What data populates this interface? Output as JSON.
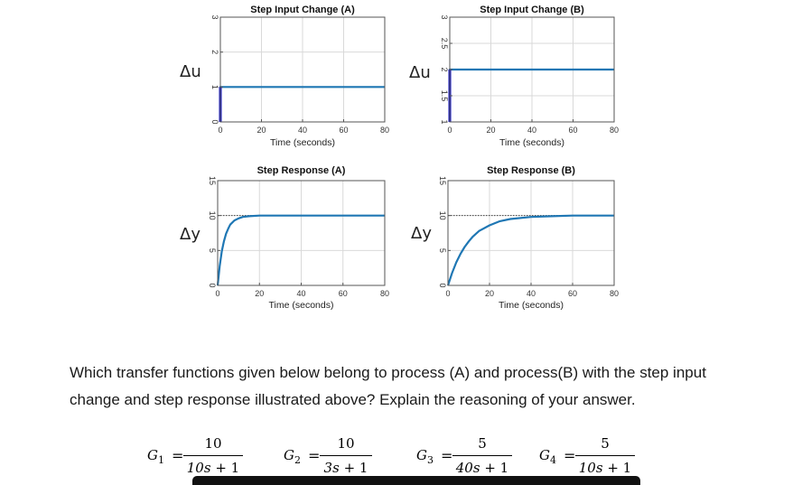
{
  "chart_data": [
    {
      "type": "line",
      "title": "Step Input Change (A)",
      "xlabel": "Time (seconds)",
      "ylabel": "Δu",
      "xlim": [
        0,
        80
      ],
      "ylim": [
        0,
        3
      ],
      "xticks": [
        0,
        20,
        40,
        60,
        80
      ],
      "yticks": [
        0,
        1,
        2,
        3
      ],
      "grid": true,
      "final_value": 1,
      "series": [
        {
          "x": [
            0,
            0,
            80
          ],
          "y": [
            0,
            1,
            1
          ]
        }
      ]
    },
    {
      "type": "line",
      "title": "Step Input Change (B)",
      "xlabel": "Time (seconds)",
      "ylabel": "Δu",
      "xlim": [
        0,
        80
      ],
      "ylim": [
        1,
        3
      ],
      "xticks": [
        0,
        20,
        40,
        60,
        80
      ],
      "yticks": [
        1,
        1.5,
        2,
        2.5,
        3
      ],
      "grid": true,
      "final_value": 2,
      "series": [
        {
          "x": [
            0,
            0,
            80
          ],
          "y": [
            1,
            2,
            2
          ]
        }
      ]
    },
    {
      "type": "line",
      "title": "Step Response (A)",
      "xlabel": "Time (seconds)",
      "ylabel": "Δy",
      "xlim": [
        0,
        80
      ],
      "ylim": [
        0,
        15
      ],
      "xticks": [
        0,
        20,
        40,
        60,
        80
      ],
      "yticks": [
        0,
        5,
        10,
        15
      ],
      "grid": true,
      "final_value": 10,
      "series": [
        {
          "x": [
            0,
            1,
            2,
            3,
            4,
            5,
            6,
            8,
            10,
            12,
            15,
            20,
            30,
            40,
            60,
            80
          ],
          "y": [
            0,
            2.8,
            4.9,
            6.3,
            7.4,
            8.1,
            8.7,
            9.3,
            9.6,
            9.8,
            9.9,
            10.0,
            10.0,
            10.0,
            10.0,
            10.0
          ]
        }
      ]
    },
    {
      "type": "line",
      "title": "Step Response (B)",
      "xlabel": "Time (seconds)",
      "ylabel": "Δy",
      "xlim": [
        0,
        80
      ],
      "ylim": [
        0,
        15
      ],
      "xticks": [
        0,
        20,
        40,
        60,
        80
      ],
      "yticks": [
        0,
        5,
        10,
        15
      ],
      "grid": true,
      "final_value": 10,
      "series": [
        {
          "x": [
            0,
            2,
            4,
            6,
            8,
            10,
            12,
            15,
            20,
            25,
            30,
            40,
            50,
            60,
            80
          ],
          "y": [
            0,
            1.8,
            3.3,
            4.5,
            5.5,
            6.3,
            7.0,
            7.8,
            8.6,
            9.2,
            9.5,
            9.8,
            9.9,
            10.0,
            10.0
          ]
        }
      ]
    }
  ],
  "question": "Which transfer functions given below belong to process (A) and process(B) with the step input change and step response illustrated above? Explain the reasoning of your answer.",
  "transfer_functions": [
    {
      "name": "G",
      "sub": "1",
      "num": "10",
      "den_s": "10s",
      "den_rest": " + 1"
    },
    {
      "name": "G",
      "sub": "2",
      "num": "10",
      "den_s": "3s",
      "den_rest": " + 1"
    },
    {
      "name": "G",
      "sub": "3",
      "num": "5",
      "den_s": "40s",
      "den_rest": " + 1"
    },
    {
      "name": "G",
      "sub": "4",
      "num": "5",
      "den_s": "10s",
      "den_rest": " + 1"
    }
  ],
  "colors": {
    "curve": "#1f77b4",
    "step_edge": "#1515c8",
    "grid": "#d9d9d9",
    "ref_line": "#444444"
  }
}
